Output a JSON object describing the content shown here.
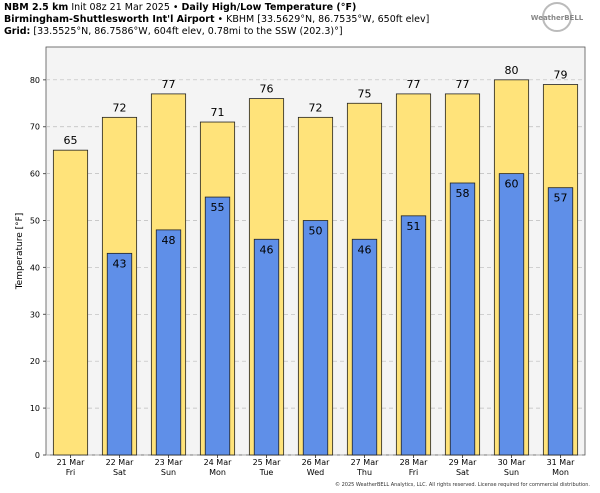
{
  "header": {
    "model": "NBM 2.5 km",
    "init": "Init 08z 21 Mar 2025",
    "product": "Daily High/Low Temperature (°F)",
    "station": "Birmingham-Shuttlesworth Int'l Airport",
    "station_info": "KBHM [33.5629°N, 86.7535°W, 650ft elev]",
    "grid_label": "Grid:",
    "grid_info": "[33.5525°N, 86.7586°W, 604ft elev, 0.78mi to the SSW (202.3)°]",
    "logo": "WeatherBELL"
  },
  "footer": "© 2025 WeatherBELL Analytics, LLC. All rights reserved. License required for commercial distribution.",
  "chart_data": {
    "type": "bar",
    "y_label": "Temperature [°F]",
    "categories": [
      "21 Mar",
      "22 Mar",
      "23 Mar",
      "24 Mar",
      "25 Mar",
      "26 Mar",
      "27 Mar",
      "28 Mar",
      "29 Mar",
      "30 Mar",
      "31 Mar"
    ],
    "category_sublabels": [
      "Fri",
      "Sat",
      "Sun",
      "Mon",
      "Tue",
      "Wed",
      "Thu",
      "Fri",
      "Sat",
      "Sun",
      "Mon"
    ],
    "series": [
      {
        "color": "#ffe37a",
        "values": [
          65,
          72,
          77,
          71,
          76,
          72,
          75,
          77,
          77,
          80,
          79
        ]
      },
      {
        "color": "#5f8fe8",
        "values": [
          null,
          43,
          48,
          55,
          46,
          50,
          46,
          51,
          58,
          60,
          57
        ]
      }
    ],
    "ylim": [
      0,
      87
    ],
    "yticks": [
      0,
      10,
      20,
      30,
      40,
      50,
      60,
      70,
      80
    ],
    "grid": true
  }
}
